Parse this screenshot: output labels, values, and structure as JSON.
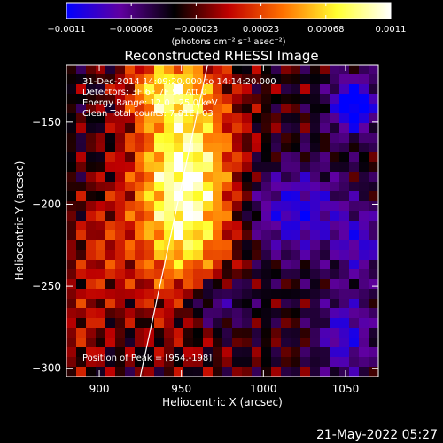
{
  "chart_data": {
    "type": "heatmap",
    "title": "Reconstructed RHESSI Image",
    "xlabel": "Heliocentric X (arcsec)",
    "ylabel": "Heliocentric Y (arcsec)",
    "xlim": [
      880,
      1070
    ],
    "ylim": [
      -305,
      -115
    ],
    "x_ticks": [
      900,
      950,
      1000,
      1050
    ],
    "y_ticks": [
      -150,
      -200,
      -250,
      -300
    ],
    "x_tick_labels": [
      "900",
      "950",
      "1000",
      "1050"
    ],
    "y_tick_labels": [
      "−150",
      "−200",
      "−250",
      "−300"
    ],
    "colorbar": {
      "min": -0.0011,
      "max": 0.0011,
      "ticks": [
        "−0.0011",
        "−0.00068",
        "−0.00023",
        "0.00023",
        "0.00068",
        "0.0011"
      ],
      "label": "(photons cm⁻² s⁻¹ asec⁻²)",
      "colors": [
        "#0000ff",
        "#6000a0",
        "#000000",
        "#c00000",
        "#ff7000",
        "#ffff30",
        "#ffffff"
      ]
    },
    "annotations": [
      "31-Dec-2014 14:09:20.000 to 14:14:20.000",
      "Detectors: 3F 6F 7F 9F  Att 0",
      "Energy Range: 12.0 - 25.0 keV",
      "Clean     Total counts: 7.81E+03"
    ],
    "peak_label": "Position of Peak = [954,-198]",
    "peak": {
      "x": 954,
      "y": -198
    },
    "limb_line": [
      [
        925,
        -305
      ],
      [
        966,
        -115
      ]
    ],
    "features": [
      {
        "x": 952,
        "y": -190,
        "sigma_x": 22,
        "sigma_y": 50,
        "amplitude": 1.0
      },
      {
        "x": 940,
        "y": -130,
        "sigma_x": 16,
        "sigma_y": 12,
        "amplitude": 0.45
      },
      {
        "x": 900,
        "y": -230,
        "sigma_x": 14,
        "sigma_y": 25,
        "amplitude": 0.25
      },
      {
        "x": 1020,
        "y": -205,
        "sigma_x": 22,
        "sigma_y": 20,
        "amplitude": -0.6
      },
      {
        "x": 1055,
        "y": -140,
        "sigma_x": 10,
        "sigma_y": 12,
        "amplitude": -0.9
      },
      {
        "x": 970,
        "y": -260,
        "sigma_x": 15,
        "sigma_y": 12,
        "amplitude": -0.5
      },
      {
        "x": 1050,
        "y": -280,
        "sigma_x": 12,
        "sigma_y": 18,
        "amplitude": -0.55
      },
      {
        "x": 1060,
        "y": -225,
        "sigma_x": 10,
        "sigma_y": 15,
        "amplitude": -0.45
      },
      {
        "x": 890,
        "y": -280,
        "sigma_x": 10,
        "sigma_y": 20,
        "amplitude": 0.2
      }
    ]
  },
  "footer": {
    "date": "21-May-2022 05:27"
  }
}
